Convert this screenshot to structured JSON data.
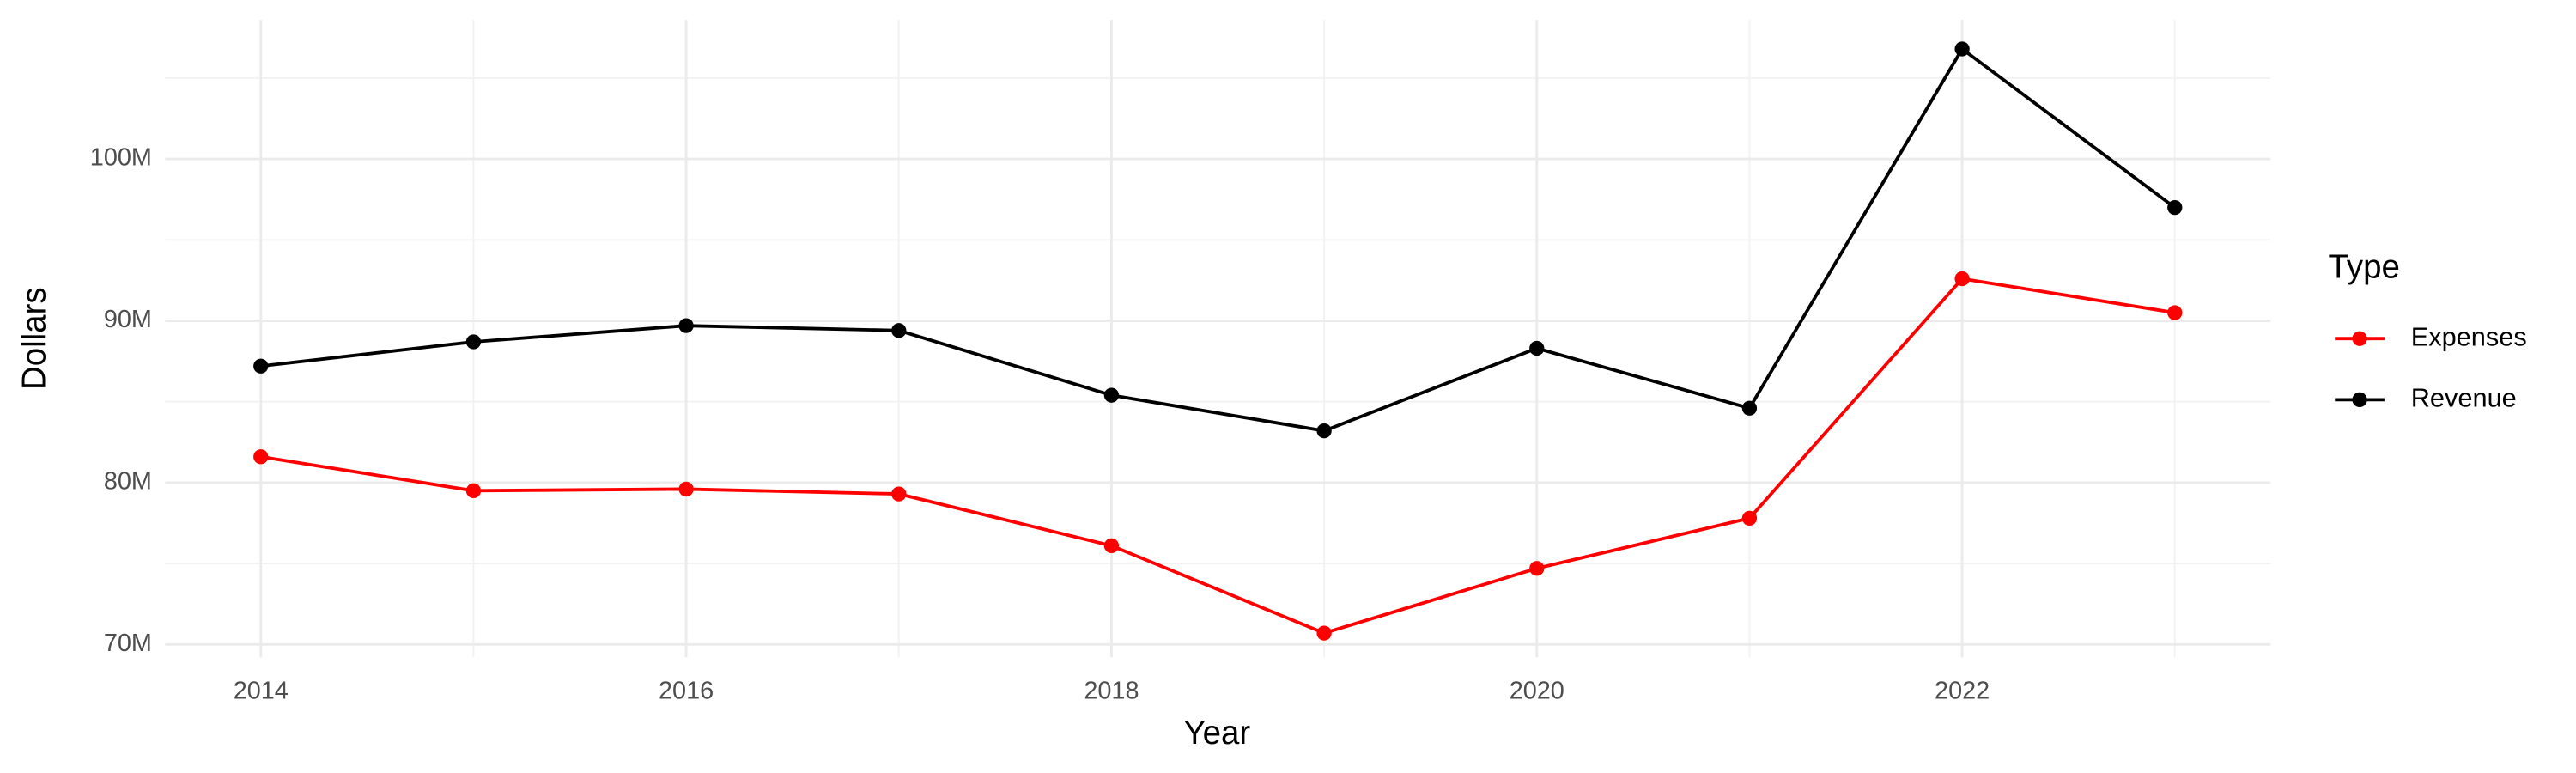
{
  "chart_data": {
    "type": "line",
    "x_label": "Year",
    "y_label": "Dollars",
    "x": [
      2014,
      2015,
      2016,
      2017,
      2018,
      2019,
      2020,
      2021,
      2022,
      2023
    ],
    "series": [
      {
        "name": "Expenses",
        "color": "#ff0000",
        "values": [
          81600000,
          79500000,
          79600000,
          79300000,
          76100000,
          70700000,
          74700000,
          77800000,
          92600000,
          90500000
        ]
      },
      {
        "name": "Revenue",
        "color": "#000000",
        "values": [
          87200000,
          88700000,
          89700000,
          89400000,
          85400000,
          83200000,
          88300000,
          84600000,
          106800000,
          97000000
        ]
      }
    ],
    "xlim": [
      2013.55,
      2023.45
    ],
    "xticks": [
      2014,
      2016,
      2018,
      2020,
      2022
    ],
    "ylim": [
      69200000,
      108600000
    ],
    "yticks": [
      {
        "value": 70000000,
        "label": "70M"
      },
      {
        "value": 80000000,
        "label": "80M"
      },
      {
        "value": 90000000,
        "label": "90M"
      },
      {
        "value": 100000000,
        "label": "100M"
      }
    ],
    "grid": true,
    "legend": {
      "title": "Type",
      "position": "right"
    }
  }
}
